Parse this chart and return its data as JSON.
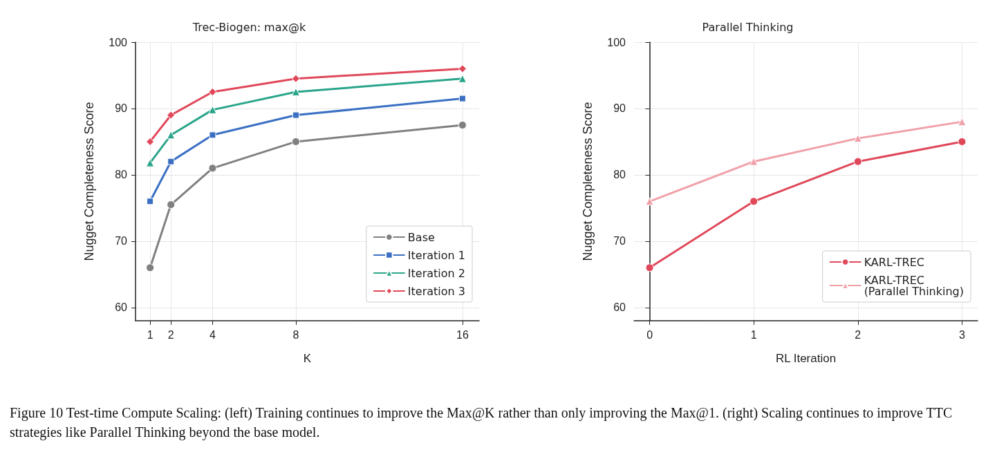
{
  "chart_data": [
    {
      "type": "line",
      "title": "Trec-Biogen: max@k",
      "xlabel": "K",
      "ylabel": "Nugget Completeness Score",
      "x": [
        1,
        2,
        4,
        8,
        16
      ],
      "xlim": [
        0.3,
        16.8
      ],
      "xticks": [
        1,
        2,
        4,
        8,
        16
      ],
      "ylim": [
        58,
        100
      ],
      "yticks": [
        60,
        70,
        80,
        90,
        100
      ],
      "grid": true,
      "legend": "bottom right",
      "series": [
        {
          "name": "Base",
          "color": "#808080",
          "marker": "circle",
          "values": [
            66,
            75.5,
            81,
            85,
            87.5
          ]
        },
        {
          "name": "Iteration 1",
          "color": "#3a6fc4",
          "marker": "square",
          "values": [
            76,
            82,
            86,
            89,
            91.5
          ]
        },
        {
          "name": "Iteration 2",
          "color": "#2aa58a",
          "marker": "triangle",
          "values": [
            81.8,
            86,
            89.8,
            92.5,
            94.5
          ]
        },
        {
          "name": "Iteration 3",
          "color": "#e0485a",
          "marker": "diamond",
          "values": [
            85,
            89,
            92.5,
            94.5,
            96
          ]
        }
      ],
      "annotations": [
        "Figure 10 Test-time Compute Scaling: (left) Training continues to improve the Max@K rather than only improving the Max@1. (right) Scaling continues to improve TTC strategies like Parallel Thinking beyond the base model."
      ]
    },
    {
      "type": "line",
      "title": "Parallel Thinking",
      "xlabel": "RL Iteration",
      "ylabel": "Nugget Completeness Score",
      "x": [
        0,
        1,
        2,
        3
      ],
      "xlim": [
        -0.15,
        3.15
      ],
      "xticks": [
        0,
        1,
        2,
        3
      ],
      "ylim": [
        58,
        100
      ],
      "yticks": [
        60,
        70,
        80,
        90,
        100
      ],
      "grid": true,
      "legend": "bottom right",
      "series": [
        {
          "name": "KARL-TREC",
          "color": "#e0485a",
          "marker": "circle",
          "values": [
            66,
            76,
            82,
            85
          ]
        },
        {
          "name": "KARL-TREC\n(Parallel Thinking)",
          "color": "#f0a0a8",
          "marker": "triangle",
          "values": [
            76,
            82,
            85.5,
            88
          ]
        }
      ]
    }
  ]
}
